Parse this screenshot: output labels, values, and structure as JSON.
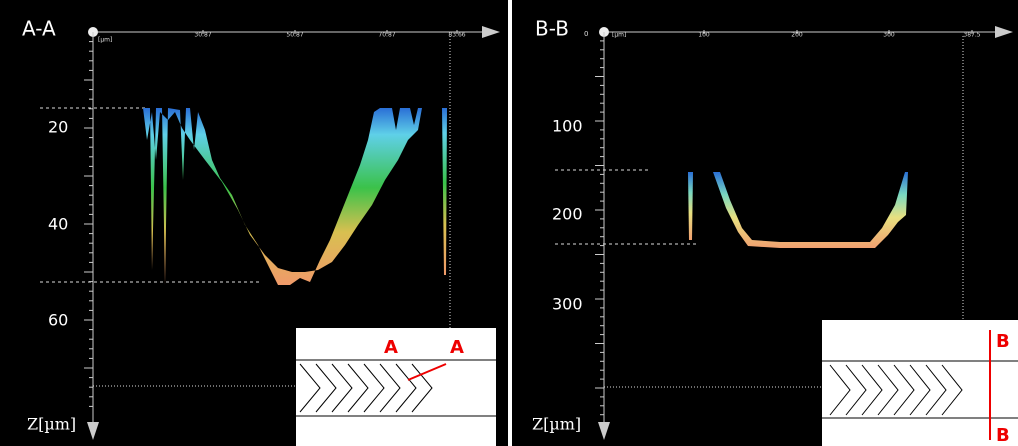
{
  "panels": [
    {
      "title": "A-A",
      "x_unit": "[µm]",
      "x_ticks": [
        "30.87",
        "50.87",
        "70.87",
        "83.66"
      ],
      "z_ticks": [
        "20",
        "40",
        "60"
      ],
      "z_label": "Z[µm]",
      "inset_labels": [
        "A",
        "A"
      ]
    },
    {
      "title": "B-B",
      "x_origin": "0",
      "x_unit": "[µm]",
      "x_ticks": [
        "100",
        "200",
        "300",
        "387.5"
      ],
      "z_ticks": [
        "100",
        "200",
        "300"
      ],
      "z_label": "Z[µm]",
      "inset_labels": [
        "B",
        "B"
      ]
    }
  ]
}
